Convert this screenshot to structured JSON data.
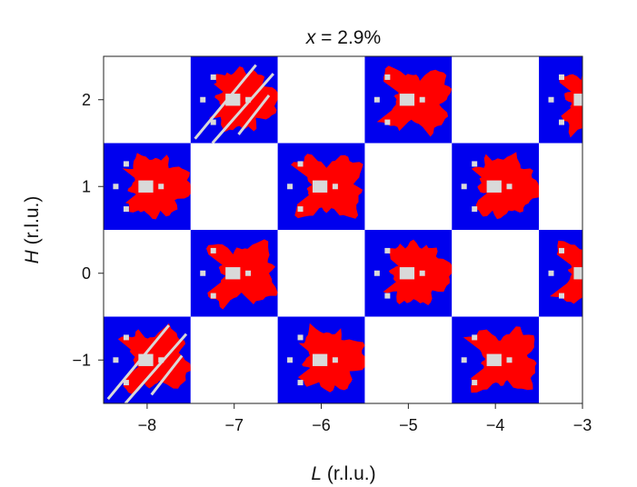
{
  "chart_data": {
    "type": "heatmap",
    "title": {
      "variable": "x",
      "rest": " = 2.9%"
    },
    "xlabel": {
      "variable": "L",
      "rest": " (r.l.u.)"
    },
    "ylabel": {
      "variable": "H",
      "rest": " (r.l.u.)"
    },
    "xlim": [
      -8.5,
      -3.0
    ],
    "ylim": [
      -1.5,
      2.5
    ],
    "xticks": [
      -8,
      -7,
      -6,
      -5,
      -4,
      -3
    ],
    "yticks": [
      -1,
      0,
      1,
      2
    ],
    "xtick_labels": [
      "−8",
      "−7",
      "−6",
      "−5",
      "−4",
      "−3"
    ],
    "ytick_labels": [
      "−1",
      "0",
      "1",
      "2"
    ],
    "grid": false,
    "colors": {
      "background": "#0000ee",
      "region": "#ff0000",
      "peak": "#d9d9d9",
      "empty": "#ffffff"
    },
    "cells": [
      {
        "L": -8,
        "H": 2,
        "filled": false
      },
      {
        "L": -7,
        "H": 2,
        "filled": true,
        "streaks": true
      },
      {
        "L": -6,
        "H": 2,
        "filled": false
      },
      {
        "L": -5,
        "H": 2,
        "filled": true
      },
      {
        "L": -4,
        "H": 2,
        "filled": false
      },
      {
        "L": -3,
        "H": 2,
        "filled": true
      },
      {
        "L": -8,
        "H": 1,
        "filled": true
      },
      {
        "L": -7,
        "H": 1,
        "filled": false
      },
      {
        "L": -6,
        "H": 1,
        "filled": true
      },
      {
        "L": -5,
        "H": 1,
        "filled": false
      },
      {
        "L": -4,
        "H": 1,
        "filled": true
      },
      {
        "L": -3,
        "H": 1,
        "filled": false
      },
      {
        "L": -8,
        "H": 0,
        "filled": false
      },
      {
        "L": -7,
        "H": 0,
        "filled": true
      },
      {
        "L": -6,
        "H": 0,
        "filled": false
      },
      {
        "L": -5,
        "H": 0,
        "filled": true
      },
      {
        "L": -4,
        "H": 0,
        "filled": false
      },
      {
        "L": -3,
        "H": 0,
        "filled": true
      },
      {
        "L": -8,
        "H": -1,
        "filled": true,
        "streaks": true
      },
      {
        "L": -7,
        "H": -1,
        "filled": false
      },
      {
        "L": -6,
        "H": -1,
        "filled": true
      },
      {
        "L": -5,
        "H": -1,
        "filled": false
      },
      {
        "L": -4,
        "H": -1,
        "filled": true
      },
      {
        "L": -3,
        "H": -1,
        "filled": false
      }
    ]
  }
}
